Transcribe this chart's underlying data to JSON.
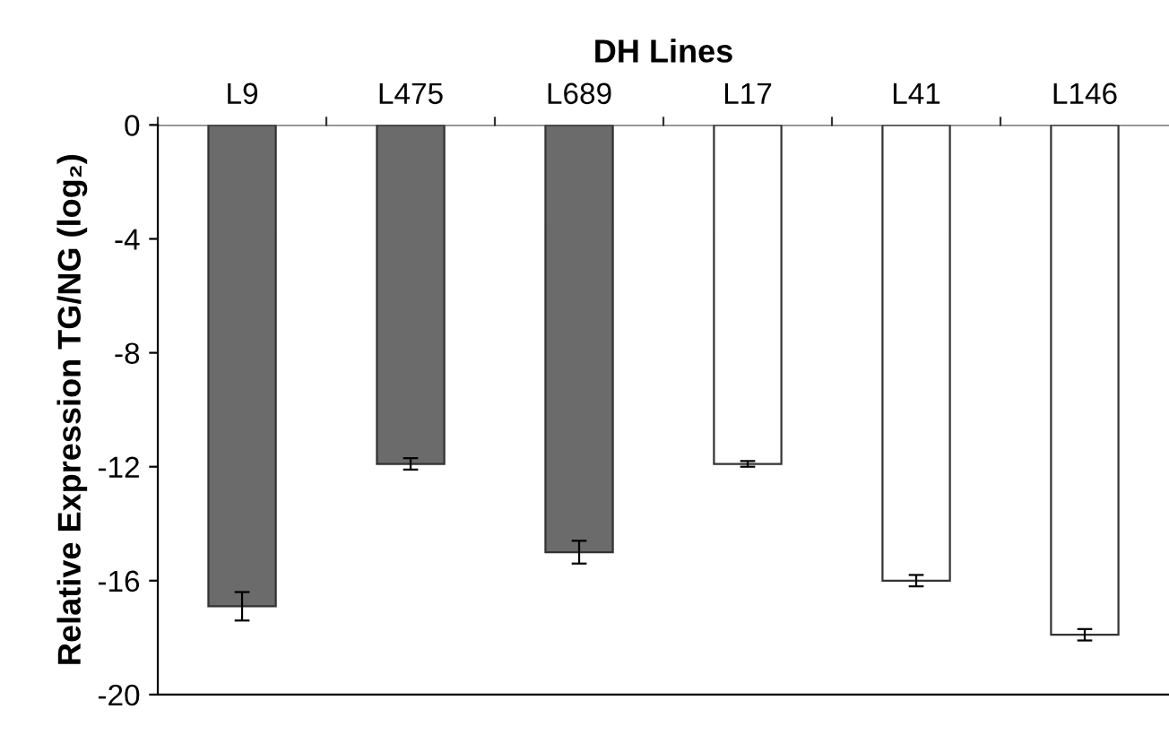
{
  "chart_data": {
    "type": "bar",
    "xlabel": "DH Lines",
    "ylabel": "Relative Expression TG/NG (log₂)",
    "categories": [
      "L9",
      "L475",
      "L689",
      "L17",
      "L41",
      "L146"
    ],
    "values": [
      -16.9,
      -11.9,
      -15.0,
      -11.9,
      -16.0,
      -17.9
    ],
    "errors": [
      0.5,
      0.2,
      0.4,
      0.1,
      0.2,
      0.2
    ],
    "colors": [
      "#6b6b6b",
      "#6b6b6b",
      "#6b6b6b",
      "#ffffff",
      "#ffffff",
      "#ffffff"
    ],
    "ylim": [
      -20,
      0
    ],
    "yticks": [
      -20,
      -16,
      -12,
      -8,
      -4,
      0
    ],
    "grid": false,
    "legend": false
  }
}
